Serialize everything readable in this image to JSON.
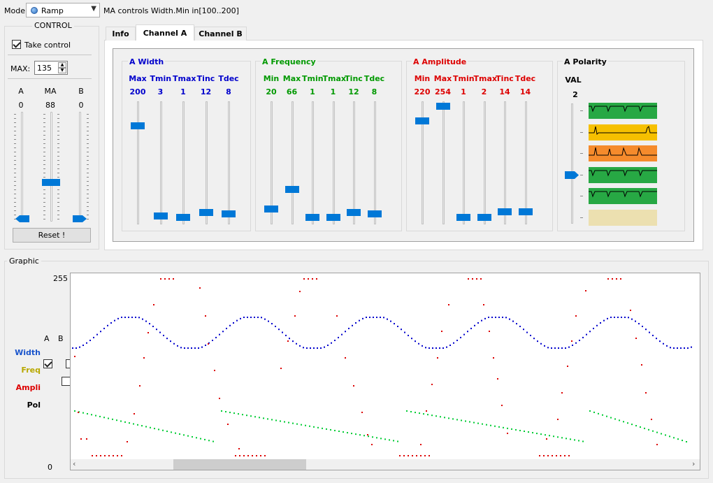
{
  "mode": {
    "label": "Mode",
    "selected": "Ramp",
    "hint": "MA controls Width.Min in[100..200]"
  },
  "control": {
    "title": "CONTROL",
    "take_control": {
      "label": "Take control",
      "checked": true
    },
    "max": {
      "label": "MAX:",
      "value": "135"
    },
    "columns": [
      {
        "head": "A",
        "value": "0",
        "level": 0
      },
      {
        "head": "MA",
        "value": "88",
        "level": 0.35
      },
      {
        "head": "B",
        "value": "0",
        "level": 0
      }
    ],
    "reset_label": "Reset !"
  },
  "tabs": [
    {
      "label": "Info",
      "active": false
    },
    {
      "label": "Channel A",
      "active": true
    },
    {
      "label": "Channel B",
      "active": false
    }
  ],
  "channel_a": {
    "width": {
      "title": "A Width",
      "color": "#0000cc",
      "sliders": [
        {
          "name": "Max",
          "value": "200",
          "pos": 0.82
        },
        {
          "name": "Tmin",
          "value": "3",
          "pos": 0.04
        },
        {
          "name": "Tmax",
          "value": "1",
          "pos": 0.03
        },
        {
          "name": "Tinc",
          "value": "12",
          "pos": 0.07
        },
        {
          "name": "Tdec",
          "value": "8",
          "pos": 0.06
        }
      ]
    },
    "frequency": {
      "title": "A Frequency",
      "color": "#009900",
      "sliders": [
        {
          "name": "Min",
          "value": "20",
          "pos": 0.1
        },
        {
          "name": "Max",
          "value": "66",
          "pos": 0.27
        },
        {
          "name": "Tmin",
          "value": "1",
          "pos": 0.03
        },
        {
          "name": "Tmax",
          "value": "1",
          "pos": 0.03
        },
        {
          "name": "Tinc",
          "value": "12",
          "pos": 0.07
        },
        {
          "name": "Tdec",
          "value": "8",
          "pos": 0.06
        }
      ]
    },
    "amplitude": {
      "title": "A Amplitude",
      "color": "#dd0000",
      "sliders": [
        {
          "name": "Min",
          "value": "220",
          "pos": 0.86
        },
        {
          "name": "Max",
          "value": "254",
          "pos": 0.99
        },
        {
          "name": "Tmin",
          "value": "1",
          "pos": 0.03
        },
        {
          "name": "Tmax",
          "value": "2",
          "pos": 0.03
        },
        {
          "name": "Tinc",
          "value": "14",
          "pos": 0.08
        },
        {
          "name": "Tdec",
          "value": "14",
          "pos": 0.08
        }
      ]
    },
    "polarity": {
      "title": "A Polarity",
      "val_label": "VAL",
      "value": "2",
      "pattern_colors": [
        "#27a844",
        "#f6c000",
        "#f58b2c",
        "#27a844",
        "#27a844",
        "#ece0b0"
      ]
    }
  },
  "graphic": {
    "title": "Graphic",
    "y_max": "255",
    "y_min": "0",
    "legend_head_a": "A",
    "legend_head_b": "B",
    "legend": [
      {
        "name": "Width",
        "color": "#1a55cc",
        "a": true,
        "b": false
      },
      {
        "name": "Freq",
        "color": "#b8a800",
        "a": false,
        "b": true
      },
      {
        "name": "Ampli",
        "color": "#dd0000",
        "a": false,
        "b": true
      },
      {
        "name": "Pol",
        "color": "#000000",
        "a": false,
        "b": false
      }
    ],
    "series_colors": {
      "width": "#0000cc",
      "freq": "#00cc33",
      "ampli": "#dd0000"
    }
  }
}
